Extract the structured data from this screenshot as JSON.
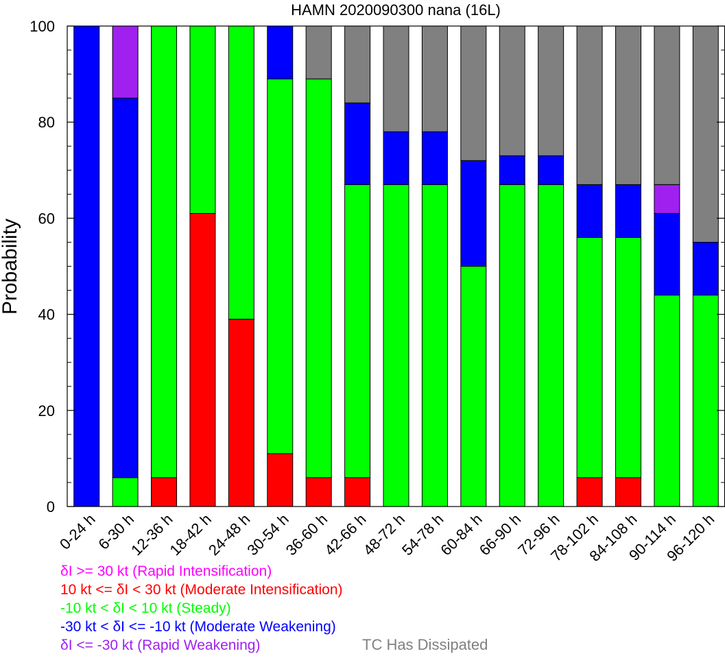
{
  "chart_data": {
    "type": "bar",
    "stacked": true,
    "title": "HAMN 2020090300 nana (16L)",
    "xlabel": "",
    "ylabel": "Probability",
    "ylim": [
      0,
      100
    ],
    "yticks": [
      "0",
      "20",
      "40",
      "60",
      "80",
      "100"
    ],
    "grid": false,
    "categories": [
      "0-24 h",
      "6-30 h",
      "12-36 h",
      "18-42 h",
      "24-48 h",
      "30-54 h",
      "36-60 h",
      "42-66 h",
      "48-72 h",
      "54-78 h",
      "60-84 h",
      "66-90 h",
      "72-96 h",
      "78-102 h",
      "84-108 h",
      "90-114 h",
      "96-120 h"
    ],
    "series": [
      {
        "key": "rapid_int",
        "color": "#ff00ff",
        "values": [
          0,
          0,
          0,
          0,
          0,
          0,
          0,
          0,
          0,
          0,
          0,
          0,
          0,
          0,
          0,
          0,
          0
        ]
      },
      {
        "key": "mod_int",
        "color": "#ff0000",
        "values": [
          0,
          0,
          6,
          61,
          39,
          11,
          6,
          6,
          0,
          0,
          0,
          0,
          0,
          6,
          6,
          0,
          0
        ]
      },
      {
        "key": "steady",
        "color": "#00ff00",
        "values": [
          0,
          6,
          94,
          39,
          61,
          78,
          83,
          61,
          67,
          67,
          50,
          67,
          67,
          50,
          50,
          44,
          44
        ]
      },
      {
        "key": "mod_weak",
        "color": "#0000ff",
        "values": [
          100,
          79,
          0,
          0,
          0,
          11,
          0,
          17,
          11,
          11,
          22,
          6,
          6,
          11,
          11,
          17,
          11
        ]
      },
      {
        "key": "rapid_weak",
        "color": "#a020f0",
        "values": [
          0,
          15,
          0,
          0,
          0,
          0,
          0,
          0,
          0,
          0,
          0,
          0,
          0,
          0,
          0,
          6,
          0
        ]
      },
      {
        "key": "dissipated",
        "color": "#808080",
        "values": [
          0,
          0,
          0,
          0,
          0,
          0,
          11,
          16,
          22,
          22,
          28,
          27,
          27,
          33,
          33,
          33,
          45
        ]
      }
    ]
  },
  "legend": {
    "rapid_int": {
      "label": "δI >= 30 kt (Rapid Intensification)",
      "color": "#ff00ff"
    },
    "mod_int": {
      "label": "10 kt <= δI < 30 kt (Moderate Intensification)",
      "color": "#ff0000"
    },
    "steady": {
      "label": "-10 kt < δI < 10 kt (Steady)",
      "color": "#00ff00"
    },
    "mod_weak": {
      "label": "-30 kt < δI <= -10 kt (Moderate Weakening)",
      "color": "#0000ff"
    },
    "rapid_weak": {
      "label": "δI <= -30 kt (Rapid Weakening)",
      "color": "#a020f0"
    },
    "dissipated": {
      "label": "TC Has Dissipated",
      "color": "#808080"
    }
  }
}
